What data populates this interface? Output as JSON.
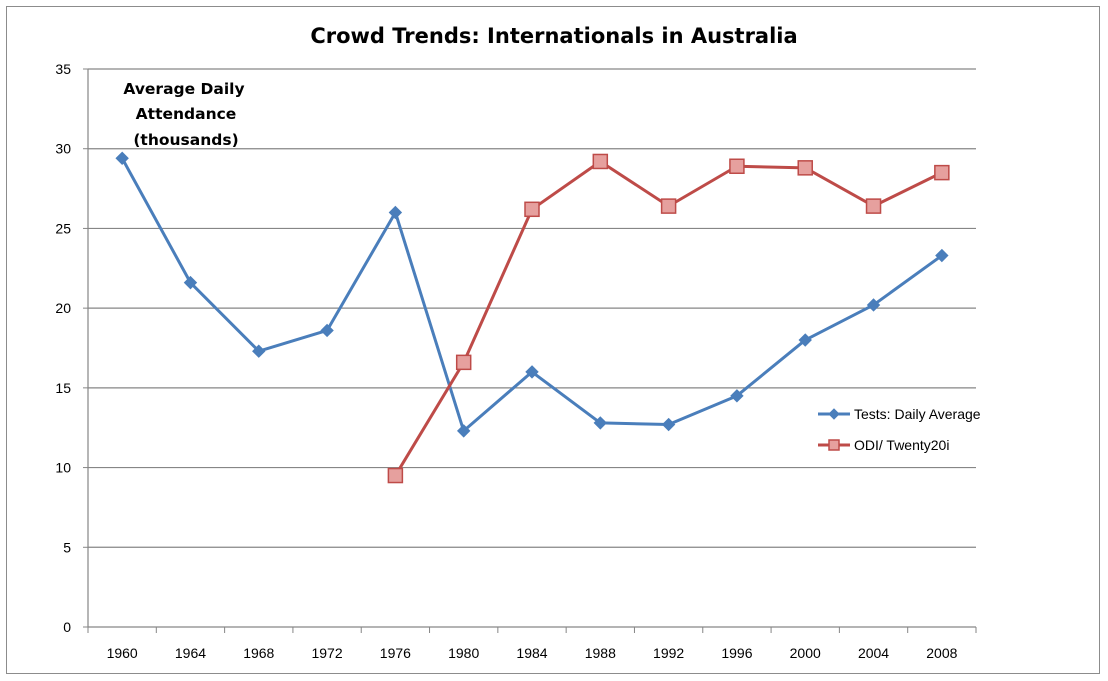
{
  "chart_data": {
    "type": "line",
    "title": "Crowd Trends: Internationals in Australia",
    "annotation": [
      "Average Daily",
      "Attendance",
      "(thousands)"
    ],
    "categories": [
      "1960",
      "1964",
      "1968",
      "1972",
      "1976",
      "1980",
      "1984",
      "1988",
      "1992",
      "1996",
      "2000",
      "2004",
      "2008"
    ],
    "ylim": [
      0,
      35
    ],
    "yticks": [
      0,
      5,
      10,
      15,
      20,
      25,
      30,
      35
    ],
    "grid": true,
    "legend_position": "right",
    "series": [
      {
        "name": "Tests: Daily Average",
        "color": "#4a7ebb",
        "marker": "diamond",
        "values": [
          29.4,
          21.6,
          17.3,
          18.6,
          26.0,
          12.3,
          16.0,
          12.8,
          12.7,
          14.5,
          18.0,
          20.2,
          23.3
        ]
      },
      {
        "name": "ODI/ Twenty20i",
        "color": "#be4b48",
        "marker": "square",
        "values": [
          null,
          null,
          null,
          null,
          9.5,
          16.6,
          26.2,
          29.2,
          26.4,
          28.9,
          28.8,
          26.4,
          28.5
        ]
      }
    ]
  }
}
